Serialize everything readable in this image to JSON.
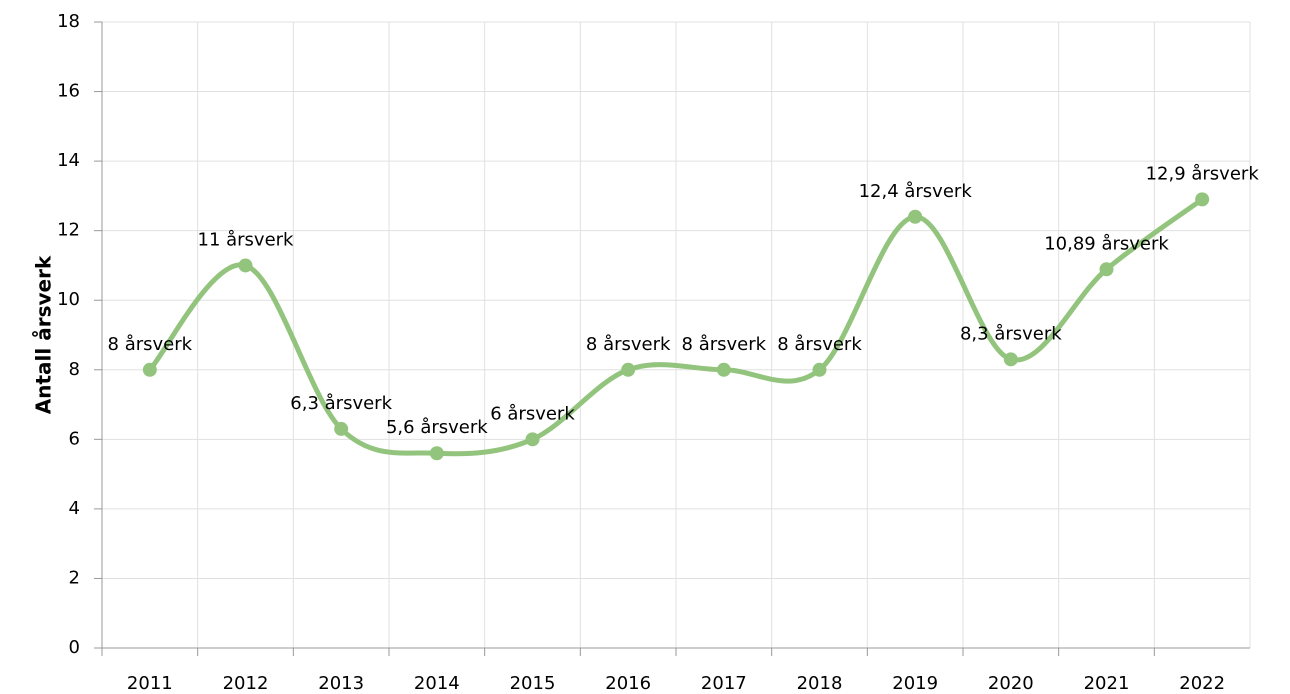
{
  "chart_data": {
    "type": "line",
    "y_label": "Antall årsverk",
    "categories": [
      "2011",
      "2012",
      "2013",
      "2014",
      "2015",
      "2016",
      "2017",
      "2018",
      "2019",
      "2020",
      "2021",
      "2022"
    ],
    "series": [
      {
        "name": "Antall årsverk",
        "color": "#93c47d",
        "values": [
          8,
          11,
          6.3,
          5.6,
          6,
          8,
          8,
          8,
          12.4,
          8.3,
          10.89,
          12.9
        ],
        "value_labels": [
          "8 årsverk",
          "11 årsverk",
          "6,3 årsverk",
          "5,6 årsverk",
          "6 årsverk",
          "8 årsverk",
          "8 årsverk",
          "8 årsverk",
          "12,4 årsverk",
          "8,3 årsverk",
          "10,89 årsverk",
          "12,9 årsverk"
        ]
      }
    ],
    "ylim": [
      0,
      18
    ],
    "yticks": [
      0,
      2,
      4,
      6,
      8,
      10,
      12,
      14,
      16,
      18
    ],
    "grid": true,
    "smooth": true
  }
}
